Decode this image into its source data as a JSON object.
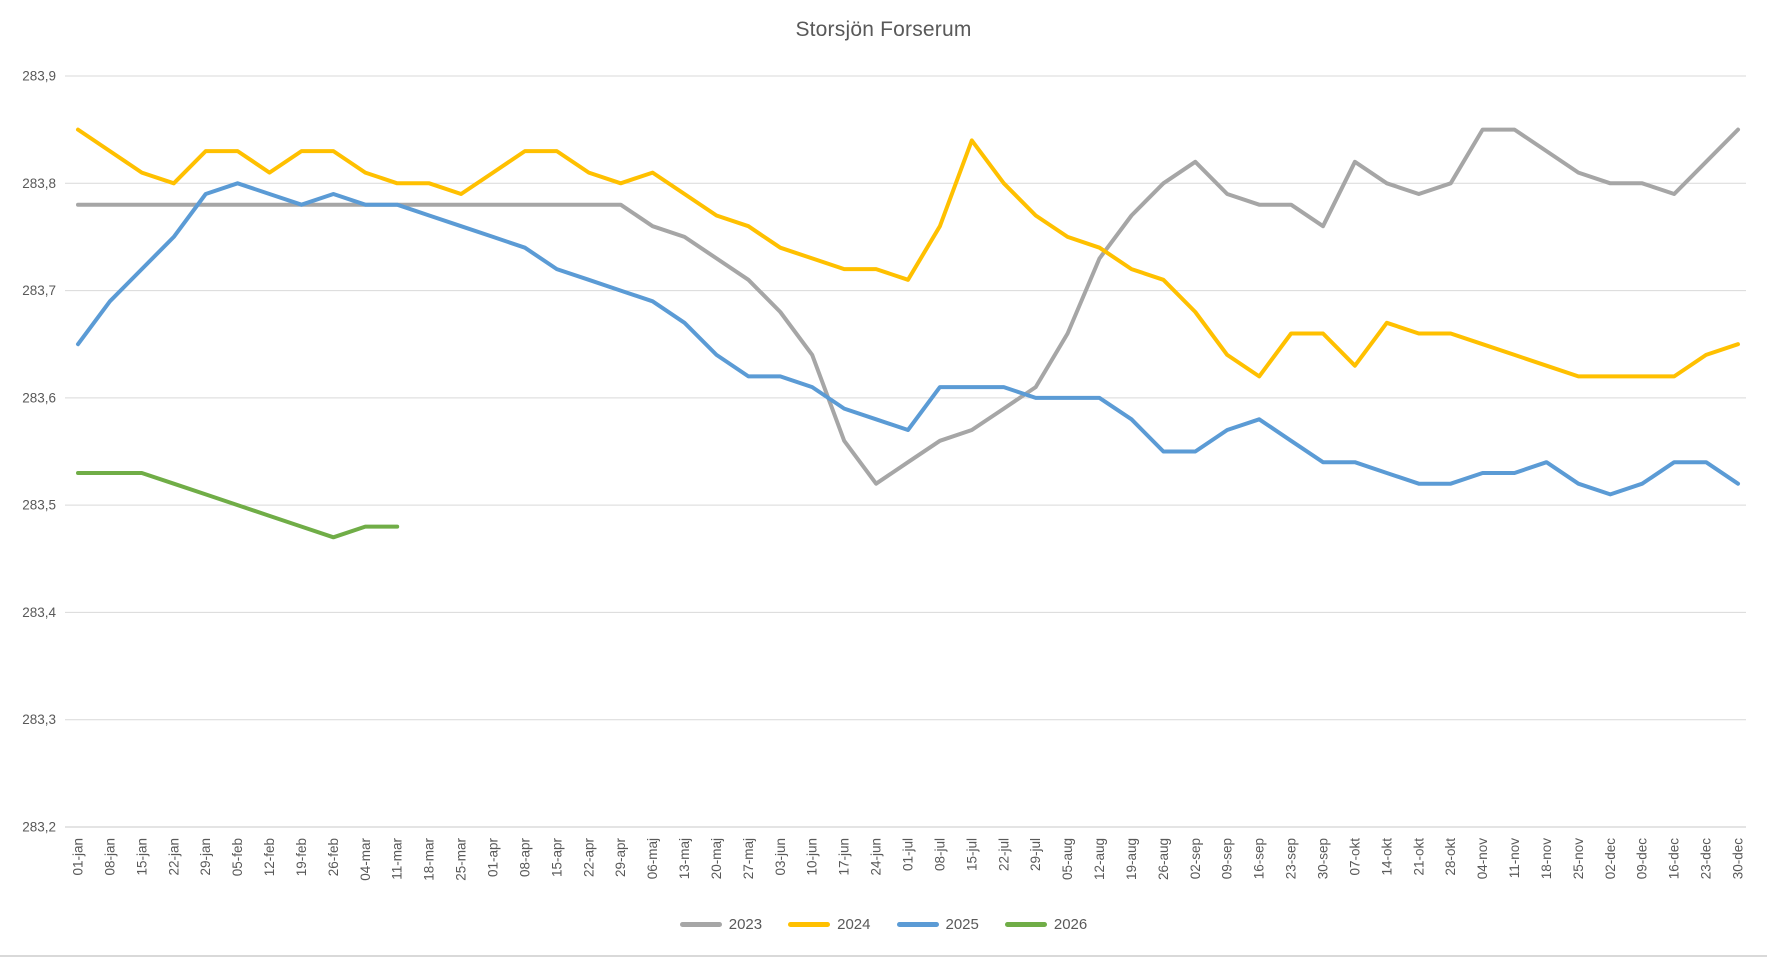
{
  "title": "Storsjön Forserum",
  "chart_data": {
    "type": "line",
    "title": "Storsjön Forserum",
    "xlabel": "",
    "ylabel": "",
    "ylim": [
      283.2,
      283.9
    ],
    "grid": true,
    "legend_position": "bottom",
    "y_ticks": [
      {
        "v": 283.9,
        "label": "283,9"
      },
      {
        "v": 283.8,
        "label": "283,8"
      },
      {
        "v": 283.7,
        "label": "283,7"
      },
      {
        "v": 283.6,
        "label": "283,6"
      },
      {
        "v": 283.5,
        "label": "283,5"
      },
      {
        "v": 283.4,
        "label": "283,4"
      },
      {
        "v": 283.3,
        "label": "283,3"
      },
      {
        "v": 283.2,
        "label": "283,2"
      }
    ],
    "categories": [
      "01-jan",
      "08-jan",
      "15-jan",
      "22-jan",
      "29-jan",
      "05-feb",
      "12-feb",
      "19-feb",
      "26-feb",
      "04-mar",
      "11-mar",
      "18-mar",
      "25-mar",
      "01-apr",
      "08-apr",
      "15-apr",
      "22-apr",
      "29-apr",
      "06-maj",
      "13-maj",
      "20-maj",
      "27-maj",
      "03-jun",
      "10-jun",
      "17-jun",
      "24-jun",
      "01-jul",
      "08-jul",
      "15-jul",
      "22-jul",
      "29-jul",
      "05-aug",
      "12-aug",
      "19-aug",
      "26-aug",
      "02-sep",
      "09-sep",
      "16-sep",
      "23-sep",
      "30-sep",
      "07-okt",
      "14-okt",
      "21-okt",
      "28-okt",
      "04-nov",
      "11-nov",
      "18-nov",
      "25-nov",
      "02-dec",
      "09-dec",
      "16-dec",
      "23-dec",
      "30-dec"
    ],
    "series": [
      {
        "name": "2023",
        "color": "#a6a6a6",
        "values": [
          283.78,
          283.78,
          283.78,
          283.78,
          283.78,
          283.78,
          283.78,
          283.78,
          283.78,
          283.78,
          283.78,
          283.78,
          283.78,
          283.78,
          283.78,
          283.78,
          283.78,
          283.78,
          283.76,
          283.75,
          283.73,
          283.71,
          283.68,
          283.64,
          283.56,
          283.52,
          283.54,
          283.56,
          283.57,
          283.59,
          283.61,
          283.66,
          283.73,
          283.77,
          283.8,
          283.82,
          283.79,
          283.78,
          283.78,
          283.76,
          283.82,
          283.8,
          283.79,
          283.8,
          283.85,
          283.85,
          283.83,
          283.81,
          283.8,
          283.8,
          283.79,
          283.82,
          283.85
        ]
      },
      {
        "name": "2024",
        "color": "#ffc000",
        "values": [
          283.85,
          283.83,
          283.81,
          283.8,
          283.83,
          283.83,
          283.81,
          283.83,
          283.83,
          283.81,
          283.8,
          283.8,
          283.79,
          283.81,
          283.83,
          283.83,
          283.81,
          283.8,
          283.81,
          283.79,
          283.77,
          283.76,
          283.74,
          283.73,
          283.72,
          283.72,
          283.71,
          283.76,
          283.84,
          283.8,
          283.77,
          283.75,
          283.74,
          283.72,
          283.71,
          283.68,
          283.64,
          283.62,
          283.66,
          283.66,
          283.63,
          283.67,
          283.66,
          283.66,
          283.65,
          283.64,
          283.63,
          283.62,
          283.62,
          283.62,
          283.62,
          283.64,
          283.65
        ]
      },
      {
        "name": "2025",
        "color": "#5b9bd5",
        "values": [
          283.65,
          283.69,
          283.72,
          283.75,
          283.79,
          283.8,
          283.79,
          283.78,
          283.79,
          283.78,
          283.78,
          283.77,
          283.76,
          283.75,
          283.74,
          283.72,
          283.71,
          283.7,
          283.69,
          283.67,
          283.64,
          283.62,
          283.62,
          283.61,
          283.59,
          283.58,
          283.57,
          283.61,
          283.61,
          283.61,
          283.6,
          283.6,
          283.6,
          283.58,
          283.55,
          283.55,
          283.57,
          283.58,
          283.56,
          283.54,
          283.54,
          283.53,
          283.52,
          283.52,
          283.53,
          283.53,
          283.54,
          283.52,
          283.51,
          283.52,
          283.54,
          283.54,
          283.52
        ]
      },
      {
        "name": "2026",
        "color": "#70ad47",
        "values": [
          283.53,
          283.53,
          283.53,
          283.52,
          283.51,
          283.5,
          283.49,
          283.48,
          283.47,
          283.48,
          283.48,
          null,
          null,
          null,
          null,
          null,
          null,
          null,
          null,
          null,
          null,
          null,
          null,
          null,
          null,
          null,
          null,
          null,
          null,
          null,
          null,
          null,
          null,
          null,
          null,
          null,
          null,
          null,
          null,
          null,
          null,
          null,
          null,
          null,
          null,
          null,
          null,
          null,
          null,
          null,
          null,
          null,
          null
        ]
      }
    ]
  },
  "legend": {
    "items": [
      {
        "label": "2023",
        "color": "#a6a6a6"
      },
      {
        "label": "2024",
        "color": "#ffc000"
      },
      {
        "label": "2025",
        "color": "#5b9bd5"
      },
      {
        "label": "2026",
        "color": "#70ad47"
      }
    ]
  },
  "style": {
    "grid_color": "#d9d9d9",
    "axis_color": "#c9c9c9",
    "text_color": "#595959",
    "background": "#ffffff"
  }
}
